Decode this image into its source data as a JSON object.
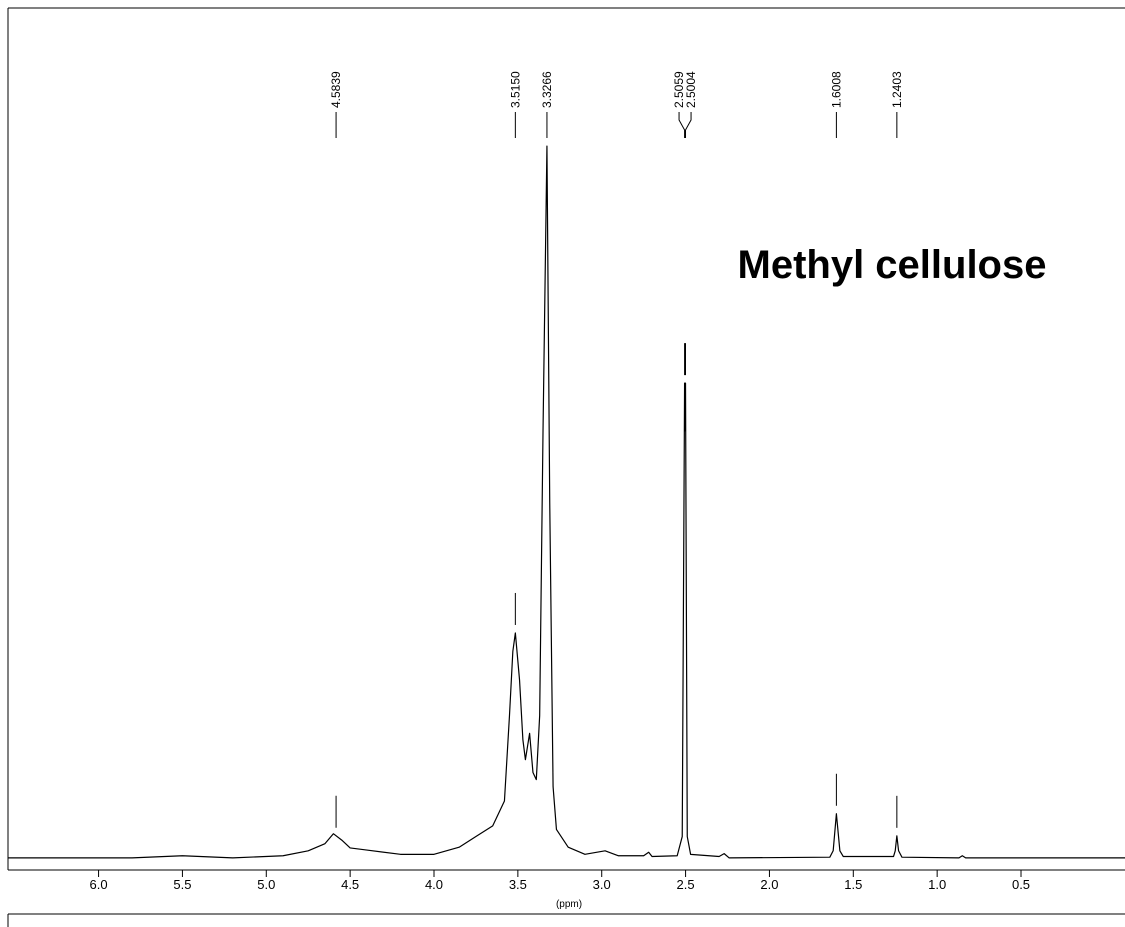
{
  "chart_data": {
    "type": "line",
    "annotation": "Methyl cellulose",
    "xlabel": "(ppm)",
    "xlim": [
      6.54,
      -0.12
    ],
    "ylim": [
      -1.7,
      119.4
    ],
    "xticks": [
      {
        "value": 6,
        "label": "6.0"
      },
      5.5,
      {
        "value": 5,
        "label": "5.0"
      },
      4.5,
      {
        "value": 4,
        "label": "4.0"
      },
      3.5,
      {
        "value": 3,
        "label": "3.0"
      },
      2.5,
      {
        "value": 2,
        "label": "2.0"
      },
      1.5,
      {
        "value": 1,
        "label": "1.0"
      },
      0.5
    ],
    "peaks": [
      4.5839,
      {
        "value": 3.515,
        "label": "3.5150"
      },
      3.3266,
      2.5059,
      2.5004,
      1.6008,
      1.2403
    ],
    "series": [
      {
        "color": "#000000",
        "x": [
          6.54,
          5.8,
          5.5,
          5.2,
          4.9,
          4.75,
          4.65,
          4.6,
          4.55,
          4.5,
          4.4,
          4.2,
          4.0,
          3.85,
          3.75,
          3.65,
          3.58,
          3.55,
          3.53,
          3.515,
          3.49,
          3.47,
          3.455,
          3.43,
          3.41,
          3.39,
          3.37,
          3.35,
          3.3266,
          3.31,
          3.29,
          3.27,
          3.2,
          3.1,
          2.98,
          2.9,
          2.75,
          2.72,
          2.7,
          2.55,
          2.52,
          2.5059,
          2.503,
          2.5004,
          2.49,
          2.47,
          2.3,
          2.27,
          2.24,
          1.64,
          1.62,
          1.6008,
          1.58,
          1.56,
          1.26,
          1.25,
          1.2403,
          1.23,
          1.21,
          0.87,
          0.85,
          0.83,
          -0.12
        ],
        "values": [
          0,
          0,
          0.3,
          0,
          0.3,
          1.0,
          2.0,
          3.4,
          2.5,
          1.4,
          1.1,
          0.5,
          0.5,
          1.5,
          3.0,
          4.5,
          8,
          20,
          29,
          31.6,
          25,
          16.6,
          13.8,
          17.5,
          12,
          11,
          20,
          60,
          100,
          50,
          10,
          4,
          1.5,
          0.5,
          1.0,
          0.3,
          0.3,
          0.8,
          0.2,
          0.3,
          3,
          66.7,
          60,
          66.7,
          3,
          0.5,
          0.2,
          0.6,
          0,
          0.1,
          1,
          6.2,
          1,
          0.2,
          0.2,
          1,
          3.1,
          1,
          0.1,
          0,
          0.3,
          0,
          0
        ]
      }
    ]
  }
}
